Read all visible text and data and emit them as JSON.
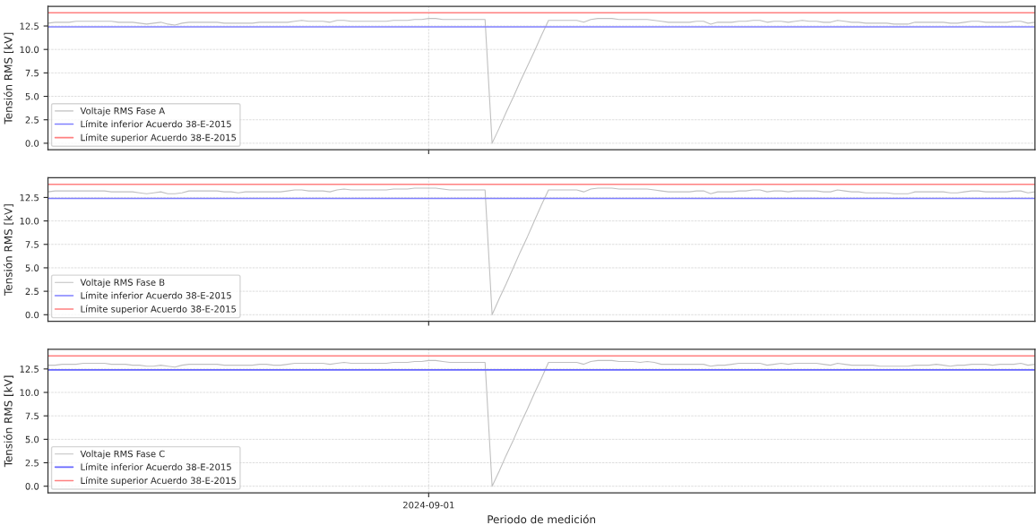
{
  "chart_data": [
    {
      "type": "line",
      "ylabel": "Tensión RMS [kV]",
      "ylim": [
        -0.7,
        14.6
      ],
      "yticks": [
        {
          "value": 0,
          "label": "0.0"
        },
        2.5,
        {
          "value": 5,
          "label": "5.0"
        },
        7.5,
        {
          "value": 10,
          "label": "10.0"
        },
        12.5
      ],
      "grid": true,
      "legend": "bottom left",
      "tick_labels": "y",
      "categories": [
        null,
        null,
        null,
        null,
        null,
        null,
        null,
        null,
        null,
        null,
        null,
        null,
        null,
        null,
        null,
        null,
        null,
        null,
        null,
        null,
        null,
        null,
        null,
        null,
        null,
        null,
        null,
        null,
        null,
        null,
        null,
        null,
        null,
        null,
        null,
        null,
        null,
        null,
        null,
        null,
        null,
        null,
        null,
        null,
        null,
        null,
        null,
        null,
        null,
        null,
        null,
        null,
        null,
        null,
        null,
        null,
        null,
        null,
        null,
        null,
        null,
        null,
        null,
        null,
        null,
        null,
        null,
        null,
        null,
        null,
        null,
        null,
        null,
        null,
        null,
        null,
        null,
        null,
        null,
        null,
        null,
        null,
        null,
        null,
        null,
        null,
        null,
        null,
        null,
        null,
        null,
        null,
        null,
        null,
        null,
        null,
        null,
        null,
        null,
        null,
        null,
        null,
        null,
        null,
        null,
        null,
        null,
        null,
        null,
        null,
        null,
        null,
        null,
        null,
        null,
        null,
        null,
        null,
        null,
        null,
        null,
        null,
        null,
        null,
        null,
        null,
        null,
        null,
        null,
        null,
        null,
        null,
        null,
        null,
        null,
        null,
        null,
        null,
        null,
        null,
        null
      ],
      "series": [
        {
          "name": "Voltaje RMS Fase A",
          "color": "#c0c0c0",
          "values": [
            12.8,
            12.9,
            12.9,
            12.9,
            13.0,
            13.0,
            13.0,
            13.0,
            13.0,
            13.0,
            12.9,
            12.9,
            12.9,
            12.8,
            12.7,
            12.8,
            12.9,
            12.7,
            12.6,
            12.8,
            12.9,
            12.9,
            12.9,
            12.9,
            12.9,
            12.8,
            12.8,
            12.8,
            12.8,
            12.8,
            12.9,
            12.9,
            12.9,
            12.9,
            12.9,
            13.0,
            13.1,
            13.0,
            13.0,
            13.0,
            12.9,
            13.1,
            13.1,
            13.0,
            13.0,
            13.0,
            13.0,
            13.0,
            13.0,
            13.1,
            13.1,
            13.1,
            13.2,
            13.2,
            13.3,
            13.3,
            13.2,
            13.2,
            13.2,
            13.2,
            13.2,
            13.2,
            13.2,
            0,
            1.6,
            3.3,
            4.9,
            6.6,
            8.2,
            9.8,
            11.5,
            13.1,
            13.1,
            13.1,
            13.1,
            13.1,
            12.9,
            13.2,
            13.3,
            13.3,
            13.3,
            13.2,
            13.2,
            13.2,
            13.2,
            13.2,
            13.1,
            13.0,
            12.9,
            12.9,
            12.9,
            12.9,
            13.0,
            13.0,
            12.7,
            12.9,
            12.9,
            12.9,
            13.0,
            13.0,
            13.1,
            13.1,
            12.9,
            13.0,
            13.0,
            12.9,
            13.0,
            13.1,
            13.0,
            13.0,
            12.9,
            12.9,
            13.1,
            13.0,
            12.9,
            12.9,
            12.8,
            12.8,
            12.8,
            12.8,
            12.7,
            12.7,
            12.7,
            12.9,
            12.9,
            12.9,
            12.9,
            12.9,
            12.8,
            12.8,
            12.9,
            13.0,
            13.0,
            12.9,
            12.9,
            12.9,
            12.9,
            13.0,
            13.0,
            12.8,
            12.9
          ]
        }
      ],
      "ref_lines": [
        {
          "axis": "y",
          "value": 12.4,
          "label": "Límite inferior Acuerdo 38-E-2015",
          "color": "#8080ff"
        },
        {
          "axis": "y",
          "value": 13.9,
          "label": "Límite superior Acuerdo 38-E-2015",
          "color": "#ff8080"
        }
      ]
    },
    {
      "type": "line",
      "ylabel": "Tensión RMS [kV]",
      "ylim": [
        -0.7,
        14.6
      ],
      "yticks": [
        {
          "value": 0,
          "label": "0.0"
        },
        2.5,
        {
          "value": 5,
          "label": "5.0"
        },
        7.5,
        {
          "value": 10,
          "label": "10.0"
        },
        12.5
      ],
      "grid": true,
      "legend": "bottom left",
      "tick_labels": "y",
      "categories": [
        null,
        null,
        null,
        null,
        null,
        null,
        null,
        null,
        null,
        null,
        null,
        null,
        null,
        null,
        null,
        null,
        null,
        null,
        null,
        null,
        null,
        null,
        null,
        null,
        null,
        null,
        null,
        null,
        null,
        null,
        null,
        null,
        null,
        null,
        null,
        null,
        null,
        null,
        null,
        null,
        null,
        null,
        null,
        null,
        null,
        null,
        null,
        null,
        null,
        null,
        null,
        null,
        null,
        null,
        null,
        null,
        null,
        null,
        null,
        null,
        null,
        null,
        null,
        null,
        null,
        null,
        null,
        null,
        null,
        null,
        null,
        null,
        null,
        null,
        null,
        null,
        null,
        null,
        null,
        null,
        null,
        null,
        null,
        null,
        null,
        null,
        null,
        null,
        null,
        null,
        null,
        null,
        null,
        null,
        null,
        null,
        null,
        null,
        null,
        null,
        null,
        null,
        null,
        null,
        null,
        null,
        null,
        null,
        null,
        null,
        null,
        null,
        null,
        null,
        null,
        null,
        null,
        null,
        null,
        null,
        null,
        null,
        null,
        null,
        null,
        null,
        null,
        null,
        null,
        null,
        null,
        null,
        null,
        null,
        null,
        null,
        null,
        null,
        null,
        null,
        null
      ],
      "series": [
        {
          "name": "Voltaje RMS Fase B",
          "color": "#c0c0c0",
          "values": [
            13.1,
            13.2,
            13.2,
            13.2,
            13.2,
            13.2,
            13.2,
            13.2,
            13.2,
            13.1,
            13.1,
            13.1,
            13.1,
            13.0,
            12.9,
            13.0,
            13.1,
            12.9,
            12.9,
            13.0,
            13.2,
            13.2,
            13.2,
            13.2,
            13.2,
            13.1,
            13.1,
            13.0,
            13.1,
            13.1,
            13.1,
            13.1,
            13.1,
            13.1,
            13.2,
            13.3,
            13.3,
            13.2,
            13.2,
            13.2,
            13.1,
            13.3,
            13.4,
            13.3,
            13.3,
            13.3,
            13.3,
            13.3,
            13.3,
            13.4,
            13.4,
            13.4,
            13.5,
            13.5,
            13.5,
            13.5,
            13.4,
            13.3,
            13.3,
            13.3,
            13.3,
            13.3,
            13.3,
            0,
            1.7,
            3.3,
            5.0,
            6.7,
            8.3,
            10.0,
            11.7,
            13.3,
            13.3,
            13.3,
            13.3,
            13.3,
            13.1,
            13.4,
            13.5,
            13.5,
            13.5,
            13.4,
            13.4,
            13.4,
            13.4,
            13.4,
            13.3,
            13.2,
            13.1,
            13.1,
            13.1,
            13.1,
            13.2,
            13.2,
            12.9,
            13.1,
            13.1,
            13.1,
            13.2,
            13.2,
            13.3,
            13.3,
            13.1,
            13.2,
            13.2,
            13.1,
            13.2,
            13.2,
            13.2,
            13.2,
            13.1,
            13.1,
            13.3,
            13.2,
            13.1,
            13.1,
            13.0,
            13.0,
            13.0,
            13.0,
            12.9,
            12.9,
            12.9,
            13.1,
            13.1,
            13.1,
            13.1,
            13.1,
            13.0,
            13.0,
            13.1,
            13.2,
            13.2,
            13.1,
            13.1,
            13.1,
            13.1,
            13.2,
            13.2,
            13.0,
            13.1
          ]
        }
      ],
      "ref_lines": [
        {
          "axis": "y",
          "value": 12.4,
          "label": "Límite inferior Acuerdo 38-E-2015",
          "color": "#8080ff"
        },
        {
          "axis": "y",
          "value": 13.9,
          "label": "Límite superior Acuerdo 38-E-2015",
          "color": "#ff8080"
        }
      ]
    },
    {
      "type": "line",
      "ylabel": "Tensión RMS [kV]",
      "xlabel": "Periodo de medición",
      "ylim": [
        -0.7,
        14.6
      ],
      "yticks": [
        {
          "value": 0,
          "label": "0.0"
        },
        2.5,
        {
          "value": 5,
          "label": "5.0"
        },
        7.5,
        {
          "value": 10,
          "label": "10.0"
        },
        12.5
      ],
      "grid": true,
      "legend": "bottom left",
      "categories": [
        null,
        null,
        null,
        null,
        null,
        null,
        null,
        null,
        null,
        null,
        null,
        null,
        null,
        null,
        null,
        null,
        null,
        null,
        null,
        null,
        null,
        null,
        null,
        null,
        null,
        null,
        null,
        null,
        null,
        null,
        null,
        null,
        null,
        null,
        null,
        null,
        null,
        null,
        null,
        null,
        null,
        null,
        null,
        null,
        null,
        null,
        null,
        null,
        null,
        null,
        null,
        null,
        null,
        null,
        "2024-09-01",
        null,
        null,
        null,
        null,
        null,
        null,
        null,
        null,
        null,
        null,
        null,
        null,
        null,
        null,
        null,
        null,
        null,
        null,
        null,
        null,
        null,
        null,
        null,
        null,
        null,
        null,
        null,
        null,
        null,
        null,
        null,
        null,
        null,
        null,
        null,
        null,
        null,
        null,
        null,
        null,
        null,
        null,
        null,
        null,
        null,
        null,
        null,
        null,
        null,
        null,
        null,
        null,
        null,
        null,
        null,
        null,
        null,
        null,
        null,
        null,
        null,
        null,
        null,
        null,
        null,
        null,
        null,
        null,
        null,
        null,
        null,
        null,
        null,
        null,
        null,
        null,
        null,
        null,
        null,
        null,
        null,
        null,
        null,
        null,
        null,
        null
      ],
      "series": [
        {
          "name": "Voltaje RMS Fase C",
          "color": "#c0c0c0",
          "values": [
            12.9,
            12.9,
            13.0,
            13.0,
            13.0,
            13.1,
            13.1,
            13.1,
            13.1,
            13.0,
            13.0,
            13.0,
            12.9,
            12.9,
            12.8,
            12.8,
            12.9,
            12.8,
            12.7,
            12.9,
            13.0,
            13.0,
            13.0,
            13.0,
            13.0,
            12.9,
            12.9,
            12.9,
            12.9,
            12.9,
            13.0,
            13.0,
            12.9,
            12.9,
            13.0,
            13.1,
            13.1,
            13.1,
            13.1,
            13.1,
            13.0,
            13.1,
            13.2,
            13.1,
            13.1,
            13.1,
            13.1,
            13.1,
            13.1,
            13.2,
            13.2,
            13.2,
            13.3,
            13.3,
            13.4,
            13.4,
            13.3,
            13.2,
            13.2,
            13.2,
            13.2,
            13.2,
            13.2,
            0,
            1.6,
            3.3,
            4.9,
            6.6,
            8.2,
            9.9,
            11.5,
            13.2,
            13.2,
            13.2,
            13.2,
            13.2,
            13.0,
            13.3,
            13.4,
            13.4,
            13.4,
            13.3,
            13.3,
            13.3,
            13.2,
            13.3,
            13.2,
            13.0,
            13.0,
            13.0,
            13.0,
            13.0,
            13.0,
            13.0,
            12.8,
            12.9,
            12.9,
            13.0,
            13.1,
            13.1,
            13.1,
            13.1,
            12.9,
            13.0,
            13.1,
            13.0,
            13.1,
            13.1,
            13.1,
            13.1,
            13.0,
            12.9,
            13.1,
            13.0,
            12.9,
            12.9,
            12.9,
            12.9,
            12.8,
            12.8,
            12.8,
            12.8,
            12.8,
            12.9,
            12.9,
            12.9,
            13.0,
            12.9,
            12.8,
            12.9,
            12.9,
            13.0,
            13.0,
            13.0,
            12.9,
            13.0,
            13.0,
            13.0,
            13.1,
            12.9,
            13.0
          ]
        }
      ],
      "ref_lines": [
        {
          "axis": "y",
          "value": 12.4,
          "label": "Límite inferior Acuerdo 38-E-2015",
          "color": "#6666ff"
        },
        {
          "axis": "y",
          "value": 13.9,
          "label": "Límite superior Acuerdo 38-E-2015",
          "color": "#ff8080"
        }
      ]
    }
  ]
}
